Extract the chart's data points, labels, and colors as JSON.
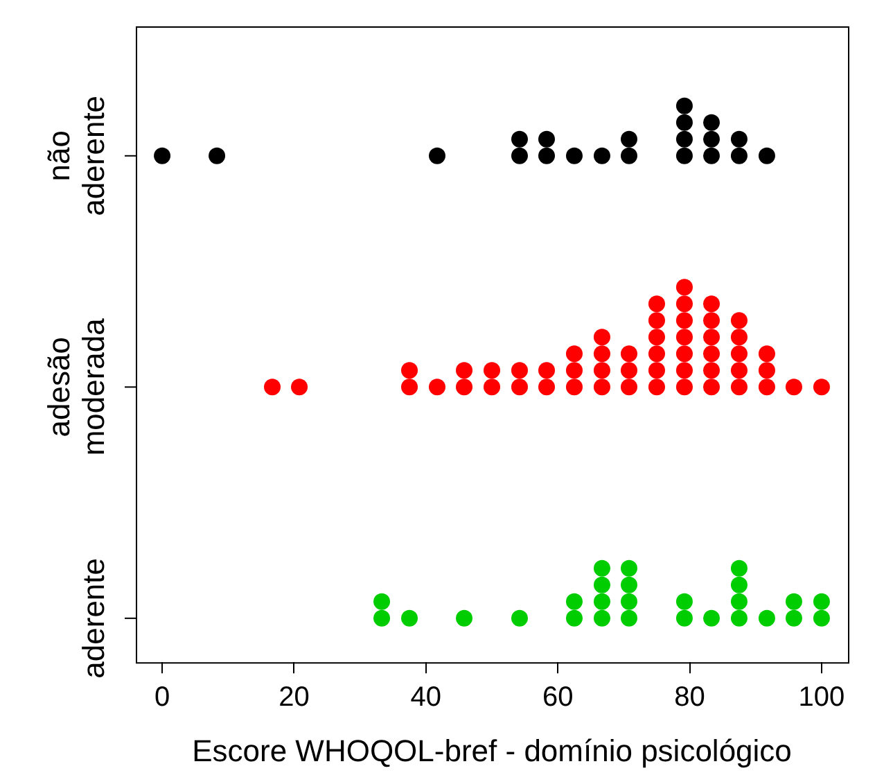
{
  "chart_data": {
    "type": "scatter",
    "orientation": "horizontal",
    "xlabel": "Escore WHOQOL-bref - domínio psicológico",
    "categories": [
      "não aderente",
      "adesão moderada",
      "aderente"
    ],
    "xlim": [
      -4,
      104
    ],
    "xticks": [
      0,
      20,
      40,
      60,
      80,
      100
    ],
    "grid": false,
    "legend": false,
    "marker": "circle",
    "series": [
      {
        "color": "#000000",
        "x": [
          "não aderente",
          "não aderente",
          "não aderente",
          "não aderente",
          "não aderente",
          "não aderente",
          "não aderente",
          "não aderente",
          "não aderente",
          "não aderente",
          "não aderente",
          "não aderente",
          "não aderente",
          "não aderente",
          "não aderente",
          "não aderente",
          "não aderente",
          "não aderente",
          "não aderente",
          "não aderente",
          "não aderente"
        ],
        "values": [
          0,
          8.3,
          41.7,
          54.2,
          54.2,
          58.3,
          58.3,
          62.5,
          66.7,
          70.8,
          70.8,
          79.2,
          79.2,
          79.2,
          79.2,
          83.3,
          83.3,
          83.3,
          87.5,
          87.5,
          91.7
        ]
      },
      {
        "color": "#ff0000",
        "x": [
          "adesão moderada",
          "adesão moderada",
          "adesão moderada",
          "adesão moderada",
          "adesão moderada",
          "adesão moderada",
          "adesão moderada",
          "adesão moderada",
          "adesão moderada",
          "adesão moderada",
          "adesão moderada",
          "adesão moderada",
          "adesão moderada",
          "adesão moderada",
          "adesão moderada",
          "adesão moderada",
          "adesão moderada",
          "adesão moderada",
          "adesão moderada",
          "adesão moderada",
          "adesão moderada",
          "adesão moderada",
          "adesão moderada",
          "adesão moderada",
          "adesão moderada",
          "adesão moderada",
          "adesão moderada",
          "adesão moderada",
          "adesão moderada",
          "adesão moderada",
          "adesão moderada",
          "adesão moderada",
          "adesão moderada",
          "adesão moderada",
          "adesão moderada",
          "adesão moderada",
          "adesão moderada",
          "adesão moderada",
          "adesão moderada",
          "adesão moderada",
          "adesão moderada",
          "adesão moderada",
          "adesão moderada",
          "adesão moderada",
          "adesão moderada",
          "adesão moderada",
          "adesão moderada",
          "adesão moderada",
          "adesão moderada",
          "adesão moderada",
          "adesão moderada",
          "adesão moderada"
        ],
        "values": [
          16.7,
          20.8,
          37.5,
          37.5,
          41.7,
          45.8,
          45.8,
          50,
          50,
          54.2,
          54.2,
          58.3,
          58.3,
          62.5,
          62.5,
          62.5,
          66.7,
          66.7,
          66.7,
          66.7,
          70.8,
          70.8,
          70.8,
          75,
          75,
          75,
          75,
          75,
          75,
          79.2,
          79.2,
          79.2,
          79.2,
          79.2,
          79.2,
          79.2,
          83.3,
          83.3,
          83.3,
          83.3,
          83.3,
          83.3,
          87.5,
          87.5,
          87.5,
          87.5,
          87.5,
          91.7,
          91.7,
          91.7,
          95.8,
          100
        ]
      },
      {
        "color": "#00cd00",
        "x": [
          "aderente",
          "aderente",
          "aderente",
          "aderente",
          "aderente",
          "aderente",
          "aderente",
          "aderente",
          "aderente",
          "aderente",
          "aderente",
          "aderente",
          "aderente",
          "aderente",
          "aderente",
          "aderente",
          "aderente",
          "aderente",
          "aderente",
          "aderente",
          "aderente",
          "aderente",
          "aderente",
          "aderente",
          "aderente",
          "aderente",
          "aderente"
        ],
        "values": [
          33.3,
          33.3,
          37.5,
          45.8,
          54.2,
          62.5,
          62.5,
          66.7,
          66.7,
          66.7,
          66.7,
          70.8,
          70.8,
          70.8,
          70.8,
          79.2,
          79.2,
          83.3,
          87.5,
          87.5,
          87.5,
          87.5,
          91.7,
          95.8,
          95.8,
          100,
          100
        ]
      }
    ]
  }
}
